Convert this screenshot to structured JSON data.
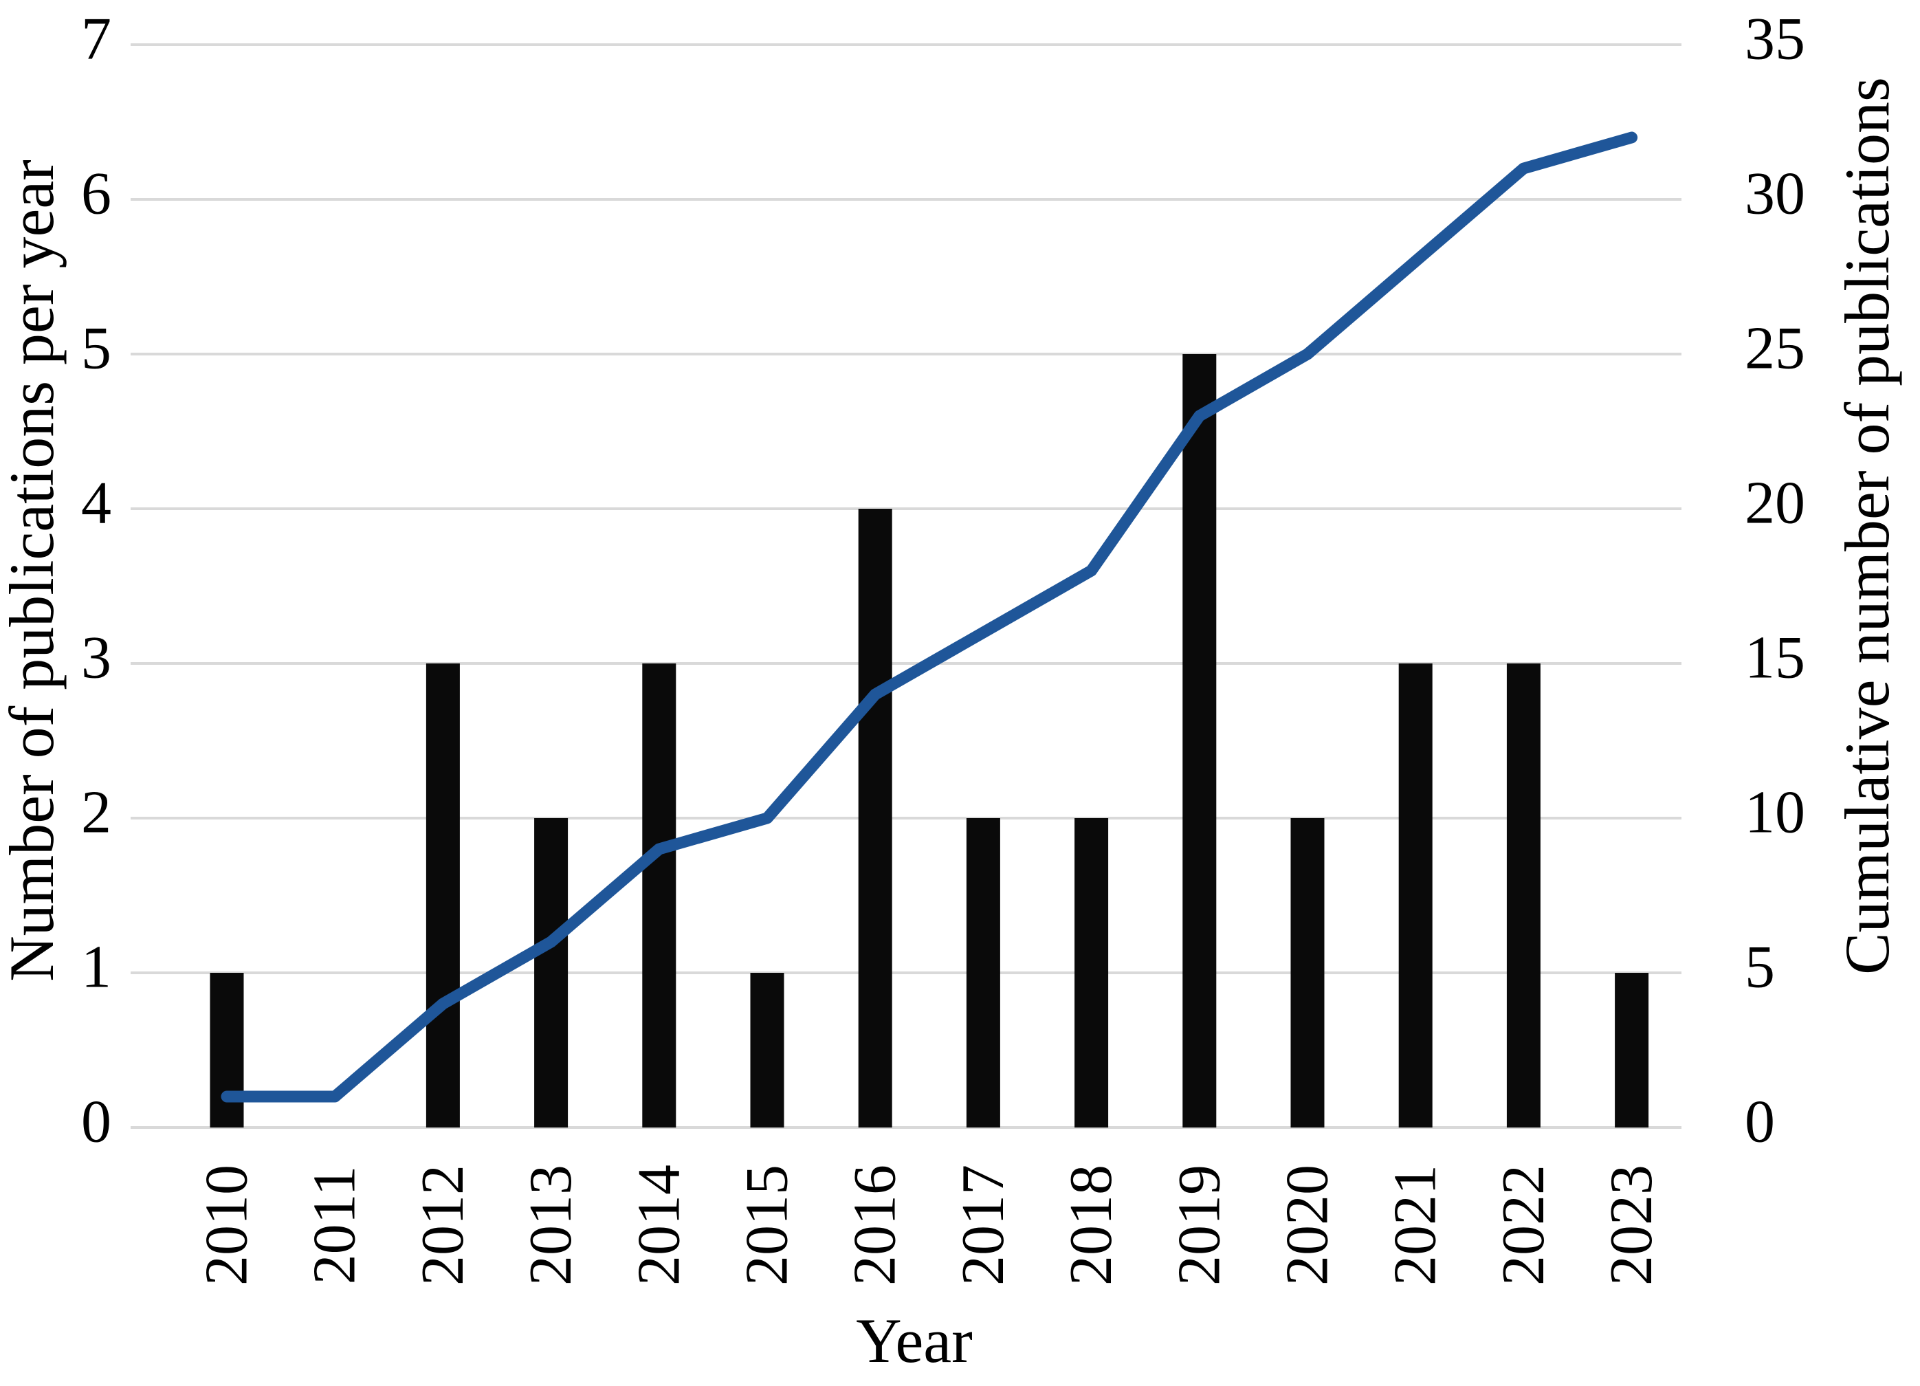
{
  "chart_data": {
    "type": "bar+line",
    "categories": [
      "2010",
      "2011",
      "2012",
      "2013",
      "2014",
      "2015",
      "2016",
      "2017",
      "2018",
      "2019",
      "2020",
      "2021",
      "2022",
      "2023"
    ],
    "series": [
      {
        "name": "Number of publications per year",
        "type": "bar",
        "axis": "left",
        "color": "#0a0a0a",
        "values": [
          1,
          0,
          3,
          2,
          3,
          1,
          4,
          2,
          2,
          5,
          2,
          3,
          3,
          1
        ]
      },
      {
        "name": "Cumulative number of publications",
        "type": "line",
        "axis": "right",
        "color": "#1f5699",
        "values": [
          1,
          1,
          4,
          6,
          9,
          10,
          14,
          16,
          18,
          23,
          25,
          28,
          31,
          32
        ]
      }
    ],
    "left_axis": {
      "label": "Number of publications per year",
      "min": 0,
      "max": 7,
      "ticks": [
        0,
        1,
        2,
        3,
        4,
        5,
        6,
        7
      ]
    },
    "right_axis": {
      "label": "Cumulative number of publications",
      "min": 0,
      "max": 35,
      "ticks": [
        0,
        5,
        10,
        15,
        20,
        25,
        30,
        35
      ]
    },
    "x_axis": {
      "label": "Year"
    },
    "grid": true,
    "gridline_color": "#d9d9d9",
    "background": "#ffffff",
    "legend": "none"
  }
}
